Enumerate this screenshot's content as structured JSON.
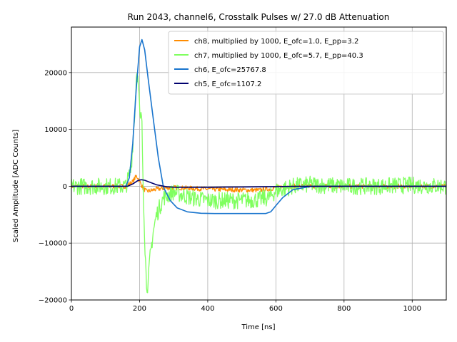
{
  "chart_data": {
    "type": "line",
    "title": "Run 2043, channel6, Crosstalk Pulses w/ 27.0 dB Attenuation",
    "xlabel": "Time [ns]",
    "ylabel": "Scaled Amplitude [ADC Counts]",
    "xlim": [
      0,
      1100
    ],
    "ylim": [
      -20000,
      28000
    ],
    "x_ticks": [
      0,
      200,
      400,
      600,
      800,
      1000
    ],
    "y_ticks": [
      -20000,
      -10000,
      0,
      10000,
      20000
    ],
    "x_tick_labels": [
      "0",
      "200",
      "400",
      "600",
      "800",
      "1000"
    ],
    "y_tick_labels": [
      "−20000",
      "−10000",
      "0",
      "10000",
      "20000"
    ],
    "grid": true,
    "legend_position": "top-right",
    "series": [
      {
        "name": "ch8, multiplied by 1000,  E_ofc=1.0, E_pp=3.2",
        "color": "#ff8c00",
        "x": [
          0,
          160,
          180,
          190,
          195,
          200,
          210,
          220,
          230,
          250,
          280,
          300,
          350,
          400,
          450,
          500,
          550,
          580,
          600,
          650,
          700,
          800,
          900,
          1000,
          1100
        ],
        "y": [
          0,
          0,
          800,
          1800,
          1500,
          900,
          -300,
          -900,
          -800,
          -500,
          -300,
          -250,
          -350,
          -500,
          -600,
          -650,
          -700,
          -500,
          -200,
          0,
          50,
          0,
          0,
          0,
          0
        ]
      },
      {
        "name": "ch7, multiplied by 1000,  E_ofc=5.7, E_pp=40.3",
        "color": "#7fff5f",
        "x": [
          0,
          160,
          175,
          185,
          192,
          197,
          202,
          206,
          210,
          215,
          220,
          225,
          230,
          240,
          250,
          270,
          300,
          350,
          400,
          450,
          500,
          550,
          580,
          600,
          650,
          700,
          800,
          900,
          1000,
          1100
        ],
        "y": [
          0,
          0,
          3000,
          12000,
          21000,
          17000,
          11000,
          13000,
          2000,
          -9000,
          -17000,
          -17500,
          -13000,
          -8000,
          -5000,
          -2000,
          -1000,
          -2000,
          -2500,
          -2500,
          -2500,
          -2300,
          -2000,
          -800,
          0,
          300,
          0,
          0,
          200,
          0
        ]
      },
      {
        "name": "ch6,  E_ofc=25767.8",
        "color": "#1874cd",
        "x": [
          0,
          160,
          170,
          180,
          190,
          200,
          207,
          215,
          225,
          240,
          255,
          270,
          290,
          310,
          340,
          380,
          420,
          460,
          500,
          540,
          570,
          585,
          600,
          620,
          650,
          700,
          800,
          1100
        ],
        "y": [
          0,
          0,
          1500,
          7500,
          17000,
          24500,
          25800,
          24000,
          19000,
          12000,
          5000,
          -200,
          -2500,
          -3800,
          -4500,
          -4750,
          -4800,
          -4800,
          -4800,
          -4800,
          -4800,
          -4500,
          -3400,
          -2000,
          -600,
          -50,
          0,
          0
        ]
      },
      {
        "name": "ch5,  E_ofc=1107.2",
        "color": "#00006e",
        "x": [
          0,
          165,
          180,
          195,
          205,
          215,
          230,
          250,
          280,
          310,
          350,
          400,
          450,
          500,
          550,
          600,
          650,
          700,
          800,
          1100
        ],
        "y": [
          0,
          0,
          400,
          1000,
          1150,
          1050,
          700,
          250,
          -100,
          -200,
          -200,
          -180,
          -150,
          -120,
          -100,
          -60,
          -20,
          0,
          0,
          0
        ]
      }
    ]
  }
}
